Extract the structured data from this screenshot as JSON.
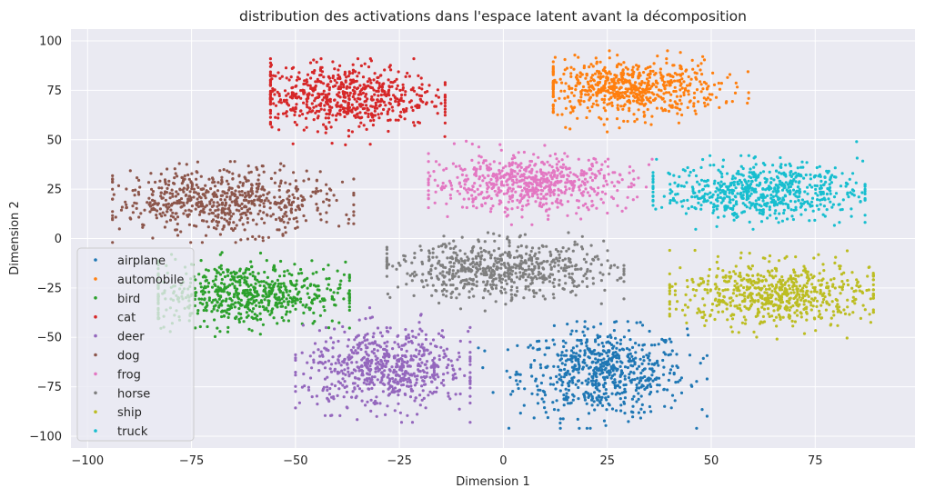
{
  "chart_data": {
    "type": "scatter",
    "title": "distribution des activations dans l'espace latent avant la décomposition",
    "xlabel": "Dimension 1",
    "ylabel": "Dimension 2",
    "xlim": [
      -104,
      99
    ],
    "ylim": [
      -106,
      106
    ],
    "xticks": [
      -100,
      -75,
      -50,
      -25,
      0,
      25,
      50,
      75
    ],
    "xtick_labels": [
      "−100",
      "−75",
      "−50",
      "−25",
      "0",
      "25",
      "50",
      "75"
    ],
    "yticks": [
      100,
      75,
      50,
      25,
      0,
      -25,
      -50,
      -75,
      -100
    ],
    "ytick_labels": [
      "100",
      "75",
      "50",
      "25",
      "0",
      "−25",
      "−50",
      "−75",
      "−100"
    ],
    "grid": true,
    "background": "#eaeaf2",
    "legend_position": "lower-left",
    "series": [
      {
        "name": "airplane",
        "color": "#1f77b4",
        "center": [
          24,
          -68
        ],
        "spread": [
          10,
          11
        ],
        "extent_x": [
          -6,
          49
        ],
        "extent_y": [
          -96,
          -42
        ]
      },
      {
        "name": "automobile",
        "color": "#ff7f0e",
        "center": [
          30,
          76
        ],
        "spread": [
          11,
          7
        ],
        "extent_x": [
          12,
          59
        ],
        "extent_y": [
          48,
          95
        ]
      },
      {
        "name": "bird",
        "color": "#2ca02c",
        "center": [
          -62,
          -28
        ],
        "spread": [
          12,
          8
        ],
        "extent_x": [
          -83,
          -37
        ],
        "extent_y": [
          -51,
          -3
        ]
      },
      {
        "name": "cat",
        "color": "#d62728",
        "center": [
          -39,
          72
        ],
        "spread": [
          11,
          8
        ],
        "extent_x": [
          -56,
          -14
        ],
        "extent_y": [
          45,
          91
        ]
      },
      {
        "name": "deer",
        "color": "#9467bd",
        "center": [
          -28,
          -66
        ],
        "spread": [
          10,
          10
        ],
        "extent_x": [
          -50,
          -8
        ],
        "extent_y": [
          -93,
          -35
        ]
      },
      {
        "name": "dog",
        "color": "#8c564b",
        "center": [
          -67,
          19
        ],
        "spread": [
          13,
          8
        ],
        "extent_x": [
          -94,
          -36
        ],
        "extent_y": [
          -2,
          39
        ]
      },
      {
        "name": "frog",
        "color": "#e377c2",
        "center": [
          6,
          28
        ],
        "spread": [
          12,
          7
        ],
        "extent_x": [
          -18,
          37
        ],
        "extent_y": [
          7,
          52
        ]
      },
      {
        "name": "horse",
        "color": "#7f7f7f",
        "center": [
          0,
          -16
        ],
        "spread": [
          13,
          7
        ],
        "extent_x": [
          -28,
          29
        ],
        "extent_y": [
          -40,
          3
        ]
      },
      {
        "name": "ship",
        "color": "#bcbd22",
        "center": [
          65,
          -28
        ],
        "spread": [
          12,
          8
        ],
        "extent_x": [
          40,
          89
        ],
        "extent_y": [
          -54,
          -6
        ]
      },
      {
        "name": "truck",
        "color": "#17becf",
        "center": [
          62,
          24
        ],
        "spread": [
          12,
          7
        ],
        "extent_x": [
          36,
          87
        ],
        "extent_y": [
          4,
          49
        ]
      }
    ]
  }
}
